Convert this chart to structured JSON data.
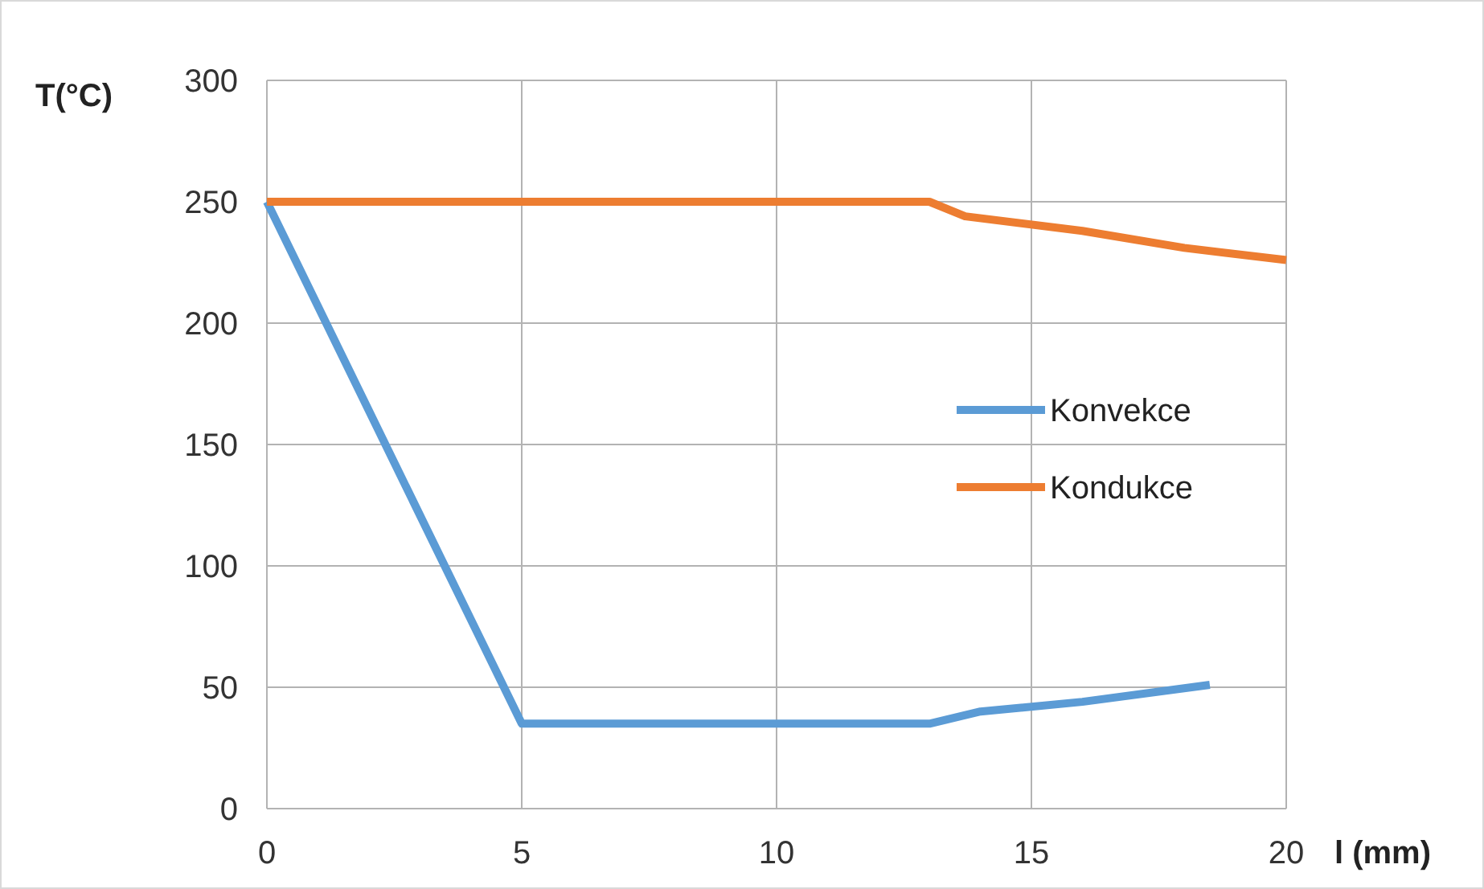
{
  "chart_data": {
    "type": "line",
    "xlabel": "l (mm)",
    "ylabel": "T(°C)",
    "series": [
      {
        "name": "Konvekce",
        "color": "#5b9bd5",
        "x": [
          0,
          5,
          13,
          14,
          16,
          18.5
        ],
        "values": [
          250,
          35,
          35,
          40,
          44,
          51
        ]
      },
      {
        "name": "Kondukce",
        "color": "#ed7d31",
        "x": [
          0,
          13,
          13.7,
          16,
          18,
          20
        ],
        "values": [
          250,
          250,
          244,
          238,
          231,
          226
        ]
      }
    ],
    "xlim": [
      0,
      20
    ],
    "xticks": [
      0,
      5,
      10,
      15,
      20
    ],
    "ylim": [
      0,
      300
    ],
    "yticks": [
      0,
      50,
      100,
      150,
      200,
      250,
      300
    ],
    "grid": true,
    "legend": "right",
    "marker": "none",
    "line_style": "solid"
  }
}
